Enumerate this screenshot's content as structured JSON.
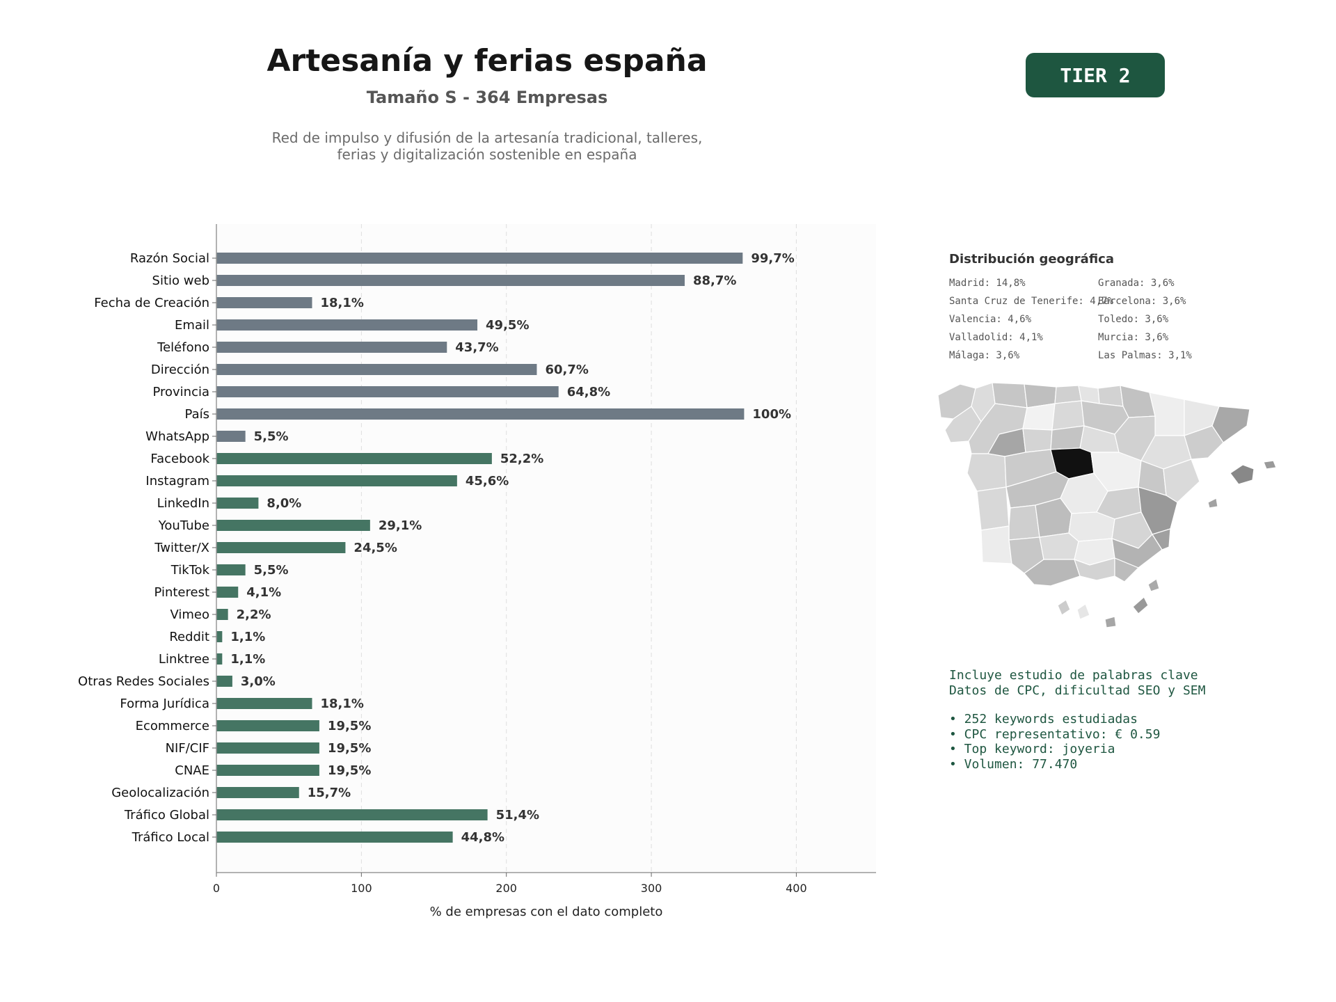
{
  "header": {
    "title": "Artesanía y ferias españa",
    "subtitle": "Tamaño S - 364 Empresas",
    "description_lines": [
      "Red de impulso y difusión de la artesanía tradicional, talleres,",
      "ferias y digitalización sostenible en españa"
    ],
    "tier_label": "TIER 2"
  },
  "colors": {
    "gray_bar": "#6e7a85",
    "green_bar": "#457563",
    "badge": "#1e5640",
    "accent_text": "#1e5640",
    "highlight_region": "#111111"
  },
  "chart_data": {
    "type": "bar",
    "orientation": "horizontal",
    "xlabel": "% de empresas con el dato completo",
    "xlim": [
      0,
      455
    ],
    "xticks": [
      0,
      100,
      200,
      300,
      400
    ],
    "grid": true,
    "categories": [
      "Razón Social",
      "Sitio web",
      "Fecha de Creación",
      "Email",
      "Teléfono",
      "Dirección",
      "Provincia",
      "País",
      "WhatsApp",
      "Facebook",
      "Instagram",
      "LinkedIn",
      "YouTube",
      "Twitter/X",
      "TikTok",
      "Pinterest",
      "Vimeo",
      "Reddit",
      "Linktree",
      "Otras Redes Sociales",
      "Forma Jurídica",
      "Ecommerce",
      "NIF/CIF",
      "CNAE",
      "Geolocalización",
      "Tráfico Global",
      "Tráfico Local"
    ],
    "values": [
      363,
      323,
      66,
      180,
      159,
      221,
      236,
      364,
      20,
      190,
      166,
      29,
      106,
      89,
      20,
      15,
      8,
      4,
      4,
      11,
      66,
      71,
      71,
      71,
      57,
      187,
      163
    ],
    "labels": [
      "99,7%",
      "88,7%",
      "18,1%",
      "49,5%",
      "43,7%",
      "60,7%",
      "64,8%",
      "100%",
      "5,5%",
      "52,2%",
      "45,6%",
      "8,0%",
      "29,1%",
      "24,5%",
      "5,5%",
      "4,1%",
      "2,2%",
      "1,1%",
      "1,1%",
      "3,0%",
      "18,1%",
      "19,5%",
      "19,5%",
      "19,5%",
      "15,7%",
      "51,4%",
      "44,8%"
    ],
    "bar_colors": [
      "gray",
      "gray",
      "gray",
      "gray",
      "gray",
      "gray",
      "gray",
      "gray",
      "gray",
      "green",
      "green",
      "green",
      "green",
      "green",
      "green",
      "green",
      "green",
      "green",
      "green",
      "green",
      "green",
      "green",
      "green",
      "green",
      "green",
      "green",
      "green"
    ]
  },
  "geo": {
    "title": "Distribución geográfica",
    "entries": [
      "Madrid: 14,8%",
      "Granada: 3,6%",
      "Santa Cruz de Tenerife: 4,7%",
      "Barcelona: 3,6%",
      "Valencia: 4,6%",
      "Toledo: 3,6%",
      "Valladolid: 4,1%",
      "Murcia: 3,6%",
      "Málaga: 3,6%",
      "Las Palmas: 3,1%"
    ]
  },
  "keywords": {
    "line1": "Incluye estudio de palabras clave",
    "line2": "Datos de CPC, dificultad SEO y SEM",
    "bullets": [
      "• 252 keywords estudiadas",
      "• CPC representativo: € 0.59",
      "• Top keyword: joyeria",
      "• Volumen: 77.470"
    ]
  }
}
